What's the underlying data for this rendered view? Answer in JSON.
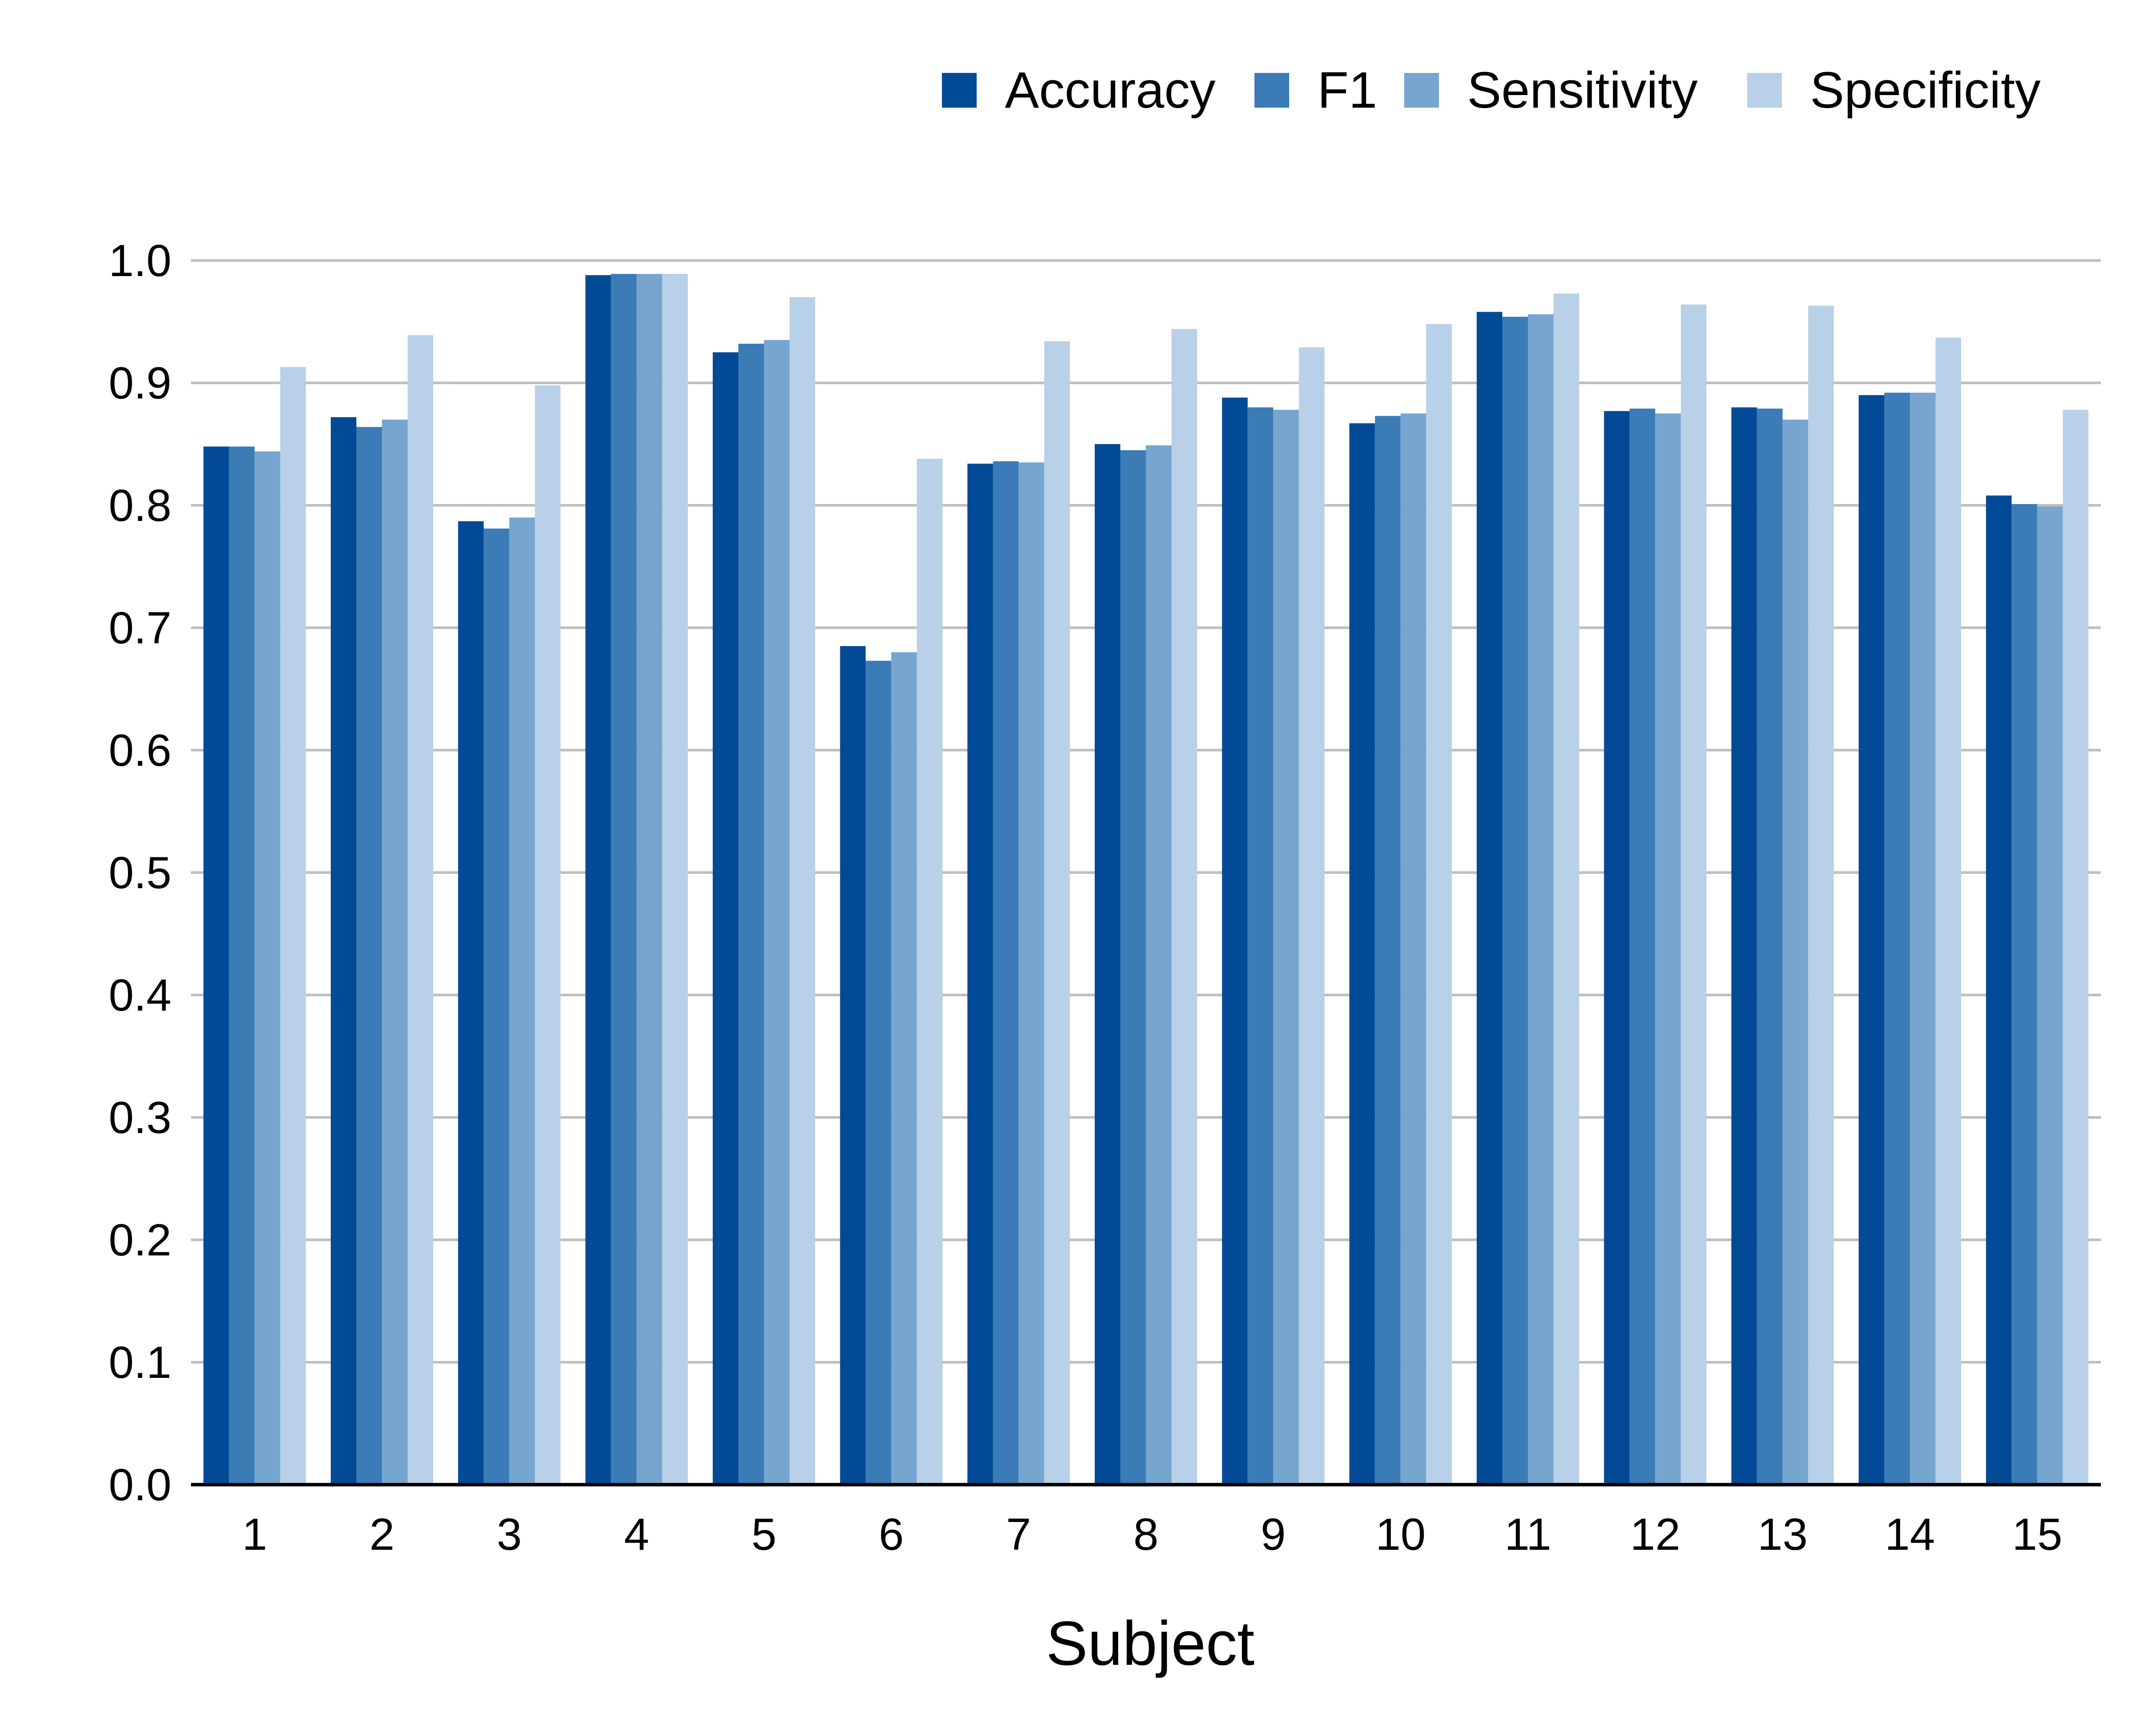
{
  "chart_data": {
    "type": "bar",
    "title": "",
    "xlabel": "Subject",
    "ylabel": "",
    "ylim": [
      0,
      1.0
    ],
    "yticks": [
      "0.0",
      "0.1",
      "0.2",
      "0.3",
      "0.4",
      "0.5",
      "0.6",
      "0.7",
      "0.8",
      "0.9",
      "1.0"
    ],
    "grid": true,
    "legend_position": "top-right",
    "categories": [
      "1",
      "2",
      "3",
      "4",
      "5",
      "6",
      "7",
      "8",
      "9",
      "10",
      "11",
      "12",
      "13",
      "14",
      "15"
    ],
    "series": [
      {
        "name": "Accuracy",
        "color": "#034a96",
        "values": [
          0.848,
          0.872,
          0.787,
          0.988,
          0.925,
          0.685,
          0.834,
          0.85,
          0.888,
          0.867,
          0.958,
          0.877,
          0.88,
          0.89,
          0.808
        ]
      },
      {
        "name": "F1",
        "color": "#3b7cb7",
        "values": [
          0.848,
          0.864,
          0.781,
          0.989,
          0.932,
          0.673,
          0.836,
          0.845,
          0.88,
          0.873,
          0.954,
          0.879,
          0.879,
          0.892,
          0.801
        ]
      },
      {
        "name": "Sensitivity",
        "color": "#76a6cf",
        "values": [
          0.844,
          0.87,
          0.79,
          0.989,
          0.935,
          0.68,
          0.835,
          0.849,
          0.878,
          0.875,
          0.956,
          0.875,
          0.87,
          0.892,
          0.799
        ]
      },
      {
        "name": "Specificity",
        "color": "#b8d0e8",
        "values": [
          0.913,
          0.939,
          0.898,
          0.989,
          0.97,
          0.838,
          0.934,
          0.944,
          0.929,
          0.948,
          0.973,
          0.964,
          0.963,
          0.937,
          0.878
        ]
      }
    ]
  }
}
